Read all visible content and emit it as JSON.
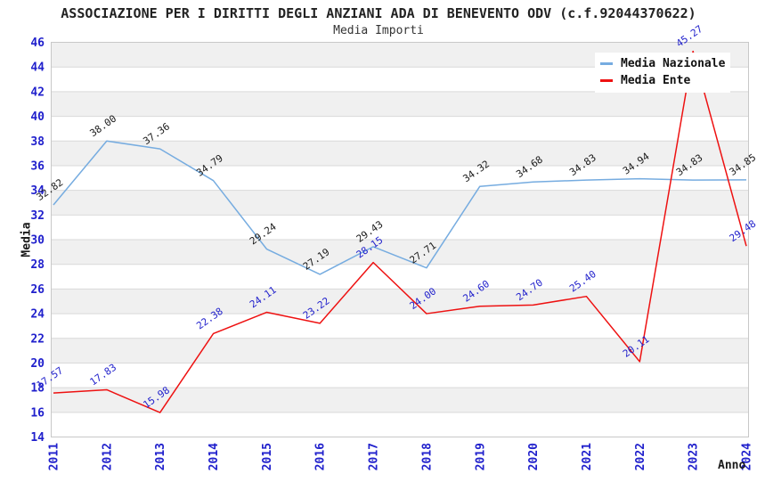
{
  "chart_data": {
    "type": "line",
    "title": "ASSOCIAZIONE PER I DIRITTI DEGLI ANZIANI ADA DI BENEVENTO ODV (c.f.92044370622)",
    "subtitle": "Media Importi",
    "xlabel": "Anno",
    "ylabel": "Media",
    "x": [
      "2011",
      "2012",
      "2013",
      "2014",
      "2015",
      "2016",
      "2017",
      "2018",
      "2019",
      "2020",
      "2021",
      "2022",
      "2023",
      "2024"
    ],
    "series": [
      {
        "name": "Media Nazionale",
        "color": "#76ace0",
        "label_color": "#1a1a1a",
        "values": [
          32.82,
          38.0,
          37.36,
          34.79,
          29.24,
          27.19,
          29.43,
          27.71,
          34.32,
          34.68,
          34.83,
          34.94,
          34.83,
          34.85
        ]
      },
      {
        "name": "Media Ente",
        "color": "#ee1111",
        "label_color": "#2222cc",
        "values": [
          17.57,
          17.83,
          15.98,
          22.38,
          24.11,
          23.22,
          28.15,
          24.0,
          24.6,
          24.7,
          25.4,
          20.11,
          45.27,
          29.48
        ]
      }
    ],
    "ylim": [
      14,
      46
    ],
    "ytick_step": 2,
    "grid": "horizontal",
    "band_colors": [
      "#f0f0f0",
      "#ffffff"
    ],
    "grid_color": "#d9d9d9",
    "border_color": "#c8c8c8",
    "axis_tick_color": "#2020cc",
    "legend_position": "top-right"
  }
}
